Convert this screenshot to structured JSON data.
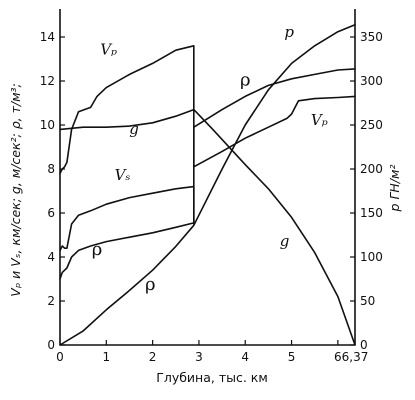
{
  "chart_data": {
    "type": "line",
    "xlabel": "Глубина, тыс. км",
    "ylabel_left": "Vₚ и Vₛ, км/сек; g, м/сек²; ρ, т/м³;",
    "ylabel_right": "p ГН/м²",
    "x_ticks": [
      {
        "value": 0,
        "label": "0"
      },
      {
        "value": 1,
        "label": "1"
      },
      {
        "value": 2,
        "label": "2"
      },
      {
        "value": 3,
        "label": "3"
      },
      {
        "value": 4,
        "label": "4"
      },
      {
        "value": 5,
        "label": "5"
      },
      {
        "value": 6,
        "label": "6"
      },
      {
        "value": 6.37,
        "label": "6,37"
      }
    ],
    "y_left_ticks": [
      {
        "value": 0,
        "label": "0"
      },
      {
        "value": 2,
        "label": "2"
      },
      {
        "value": 4,
        "label": "4"
      },
      {
        "value": 6,
        "label": "6"
      },
      {
        "value": 8,
        "label": "8"
      },
      {
        "value": 10,
        "label": "10"
      },
      {
        "value": 12,
        "label": "12"
      },
      {
        "value": 14,
        "label": "14"
      }
    ],
    "y_right_ticks": [
      {
        "value": 0,
        "label": "0"
      },
      {
        "value": 50,
        "label": "50"
      },
      {
        "value": 100,
        "label": "100"
      },
      {
        "value": 150,
        "label": "150"
      },
      {
        "value": 200,
        "label": "200"
      },
      {
        "value": 250,
        "label": "250"
      },
      {
        "value": 300,
        "label": "300"
      },
      {
        "value": 350,
        "label": "350"
      }
    ],
    "xlim": [
      0,
      6.37
    ],
    "ylim_left": [
      0,
      15
    ],
    "ylim_right": [
      0,
      375
    ],
    "series": [
      {
        "name": "Vₚ",
        "axis": "left",
        "points": [
          [
            0,
            7.8
          ],
          [
            0.05,
            8.0
          ],
          [
            0.1,
            8.1
          ],
          [
            0.15,
            8.3
          ],
          [
            0.25,
            9.8
          ],
          [
            0.4,
            10.6
          ],
          [
            0.66,
            10.8
          ],
          [
            0.8,
            11.3
          ],
          [
            1.0,
            11.7
          ],
          [
            1.5,
            12.3
          ],
          [
            2.0,
            12.8
          ],
          [
            2.5,
            13.4
          ],
          [
            2.89,
            13.6
          ],
          [
            2.89,
            8.1
          ],
          [
            3.5,
            8.8
          ],
          [
            4.0,
            9.4
          ],
          [
            4.5,
            9.9
          ],
          [
            4.9,
            10.3
          ],
          [
            5.0,
            10.5
          ],
          [
            5.15,
            11.1
          ],
          [
            5.5,
            11.2
          ],
          [
            6.0,
            11.25
          ],
          [
            6.37,
            11.3
          ]
        ],
        "labels": [
          {
            "text": "Vₚ",
            "x": 1.05,
            "y": 13.2
          },
          {
            "text": "Vₚ",
            "x": 5.6,
            "y": 10.0
          }
        ]
      },
      {
        "name": "Vₛ",
        "axis": "left",
        "points": [
          [
            0,
            4.3
          ],
          [
            0.05,
            4.5
          ],
          [
            0.1,
            4.4
          ],
          [
            0.15,
            4.4
          ],
          [
            0.25,
            5.5
          ],
          [
            0.4,
            5.9
          ],
          [
            0.66,
            6.1
          ],
          [
            1.0,
            6.4
          ],
          [
            1.5,
            6.7
          ],
          [
            2.0,
            6.9
          ],
          [
            2.5,
            7.1
          ],
          [
            2.89,
            7.2
          ],
          [
            2.89,
            5.5
          ]
        ],
        "labels": [
          {
            "text": "Vₛ",
            "x": 1.35,
            "y": 7.5
          }
        ]
      },
      {
        "name": "g",
        "axis": "left",
        "points": [
          [
            0,
            9.8
          ],
          [
            0.5,
            9.9
          ],
          [
            1.0,
            9.9
          ],
          [
            1.5,
            9.95
          ],
          [
            2.0,
            10.1
          ],
          [
            2.5,
            10.4
          ],
          [
            2.89,
            10.7
          ],
          [
            3.3,
            9.8
          ],
          [
            4.0,
            8.2
          ],
          [
            4.5,
            7.1
          ],
          [
            5.0,
            5.8
          ],
          [
            5.5,
            4.2
          ],
          [
            6.0,
            2.2
          ],
          [
            6.37,
            0
          ]
        ],
        "labels": [
          {
            "text": "g",
            "x": 1.6,
            "y": 9.6
          },
          {
            "text": "g",
            "x": 4.85,
            "y": 4.5
          }
        ]
      },
      {
        "name": "ρ",
        "axis": "left",
        "points": [
          [
            0,
            3.0
          ],
          [
            0.05,
            3.3
          ],
          [
            0.1,
            3.4
          ],
          [
            0.15,
            3.5
          ],
          [
            0.25,
            4.0
          ],
          [
            0.4,
            4.3
          ],
          [
            0.66,
            4.5
          ],
          [
            1.0,
            4.7
          ],
          [
            1.5,
            4.9
          ],
          [
            2.0,
            5.1
          ],
          [
            2.5,
            5.35
          ],
          [
            2.89,
            5.55
          ],
          [
            2.89,
            9.9
          ],
          [
            3.5,
            10.7
          ],
          [
            4.0,
            11.3
          ],
          [
            4.5,
            11.8
          ],
          [
            5.0,
            12.1
          ],
          [
            5.5,
            12.3
          ],
          [
            6.0,
            12.5
          ],
          [
            6.37,
            12.55
          ]
        ],
        "labels": [
          {
            "text": "ρ",
            "x": 0.8,
            "y": 4.1
          },
          {
            "text": "ρ",
            "x": 4.0,
            "y": 11.8
          }
        ]
      },
      {
        "name": "p",
        "axis": "right",
        "points": [
          [
            0,
            0
          ],
          [
            0.5,
            16
          ],
          [
            1.0,
            40
          ],
          [
            1.5,
            62
          ],
          [
            2.0,
            85
          ],
          [
            2.5,
            112
          ],
          [
            2.89,
            136
          ],
          [
            3.5,
            200
          ],
          [
            4.0,
            250
          ],
          [
            4.5,
            290
          ],
          [
            5.0,
            320
          ],
          [
            5.5,
            340
          ],
          [
            6.0,
            356
          ],
          [
            6.37,
            364
          ]
        ],
        "labels": [
          {
            "text": "ρ",
            "x": 1.95,
            "y": 2.5
          },
          {
            "text": "p",
            "x": 4.95,
            "y": 14.0
          }
        ]
      }
    ]
  }
}
